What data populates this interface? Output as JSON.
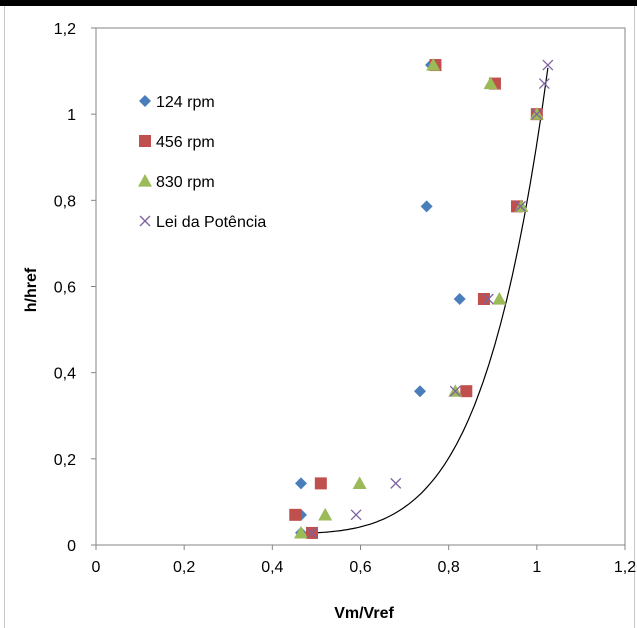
{
  "chart_data": {
    "type": "scatter",
    "xlabel": "Vm/Vref",
    "ylabel": "h/href",
    "xlim": [
      0,
      1.2
    ],
    "ylim": [
      0,
      1.2
    ],
    "x_ticks": [
      "0",
      "0,2",
      "0,4",
      "0,6",
      "0,8",
      "1",
      "1,2"
    ],
    "y_ticks": [
      "0",
      "0,2",
      "0,4",
      "0,6",
      "0,8",
      "1",
      "1,2"
    ],
    "grid": false,
    "legend_position": "left",
    "series": [
      {
        "name": "124 rpm",
        "marker": "diamond",
        "color": "#4a7ebb",
        "x": [
          0.465,
          0.465,
          0.465,
          0.735,
          0.825,
          0.75,
          0.9,
          0.96,
          1.0,
          0.76
        ],
        "y": [
          0.028,
          0.07,
          0.143,
          0.357,
          0.571,
          0.786,
          1.071,
          0.786,
          1.0,
          1.114
        ]
      },
      {
        "name": "456 rpm",
        "marker": "square",
        "color": "#c0504d",
        "x": [
          0.49,
          0.452,
          0.51,
          0.84,
          0.88,
          0.955,
          1.0,
          0.905,
          0.77
        ],
        "y": [
          0.028,
          0.07,
          0.143,
          0.357,
          0.571,
          0.786,
          1.0,
          1.071,
          1.114
        ]
      },
      {
        "name": "830 rpm",
        "marker": "triangle",
        "color": "#9bbb59",
        "x": [
          0.465,
          0.52,
          0.598,
          0.815,
          0.915,
          0.965,
          1.0,
          0.895,
          0.765
        ],
        "y": [
          0.028,
          0.07,
          0.143,
          0.357,
          0.571,
          0.786,
          1.0,
          1.071,
          1.114
        ]
      },
      {
        "name": "Lei da Potência",
        "marker": "x",
        "color": "#7f62a0",
        "x": [
          0.49,
          0.59,
          0.68,
          0.815,
          0.89,
          0.963,
          1.0,
          1.017,
          1.025
        ],
        "y": [
          0.028,
          0.07,
          0.143,
          0.357,
          0.571,
          0.786,
          1.0,
          1.071,
          1.114
        ]
      }
    ],
    "trendline": {
      "color": "#000000",
      "x_start": 0.49,
      "x_end": 1.025,
      "exponent": 7
    }
  }
}
